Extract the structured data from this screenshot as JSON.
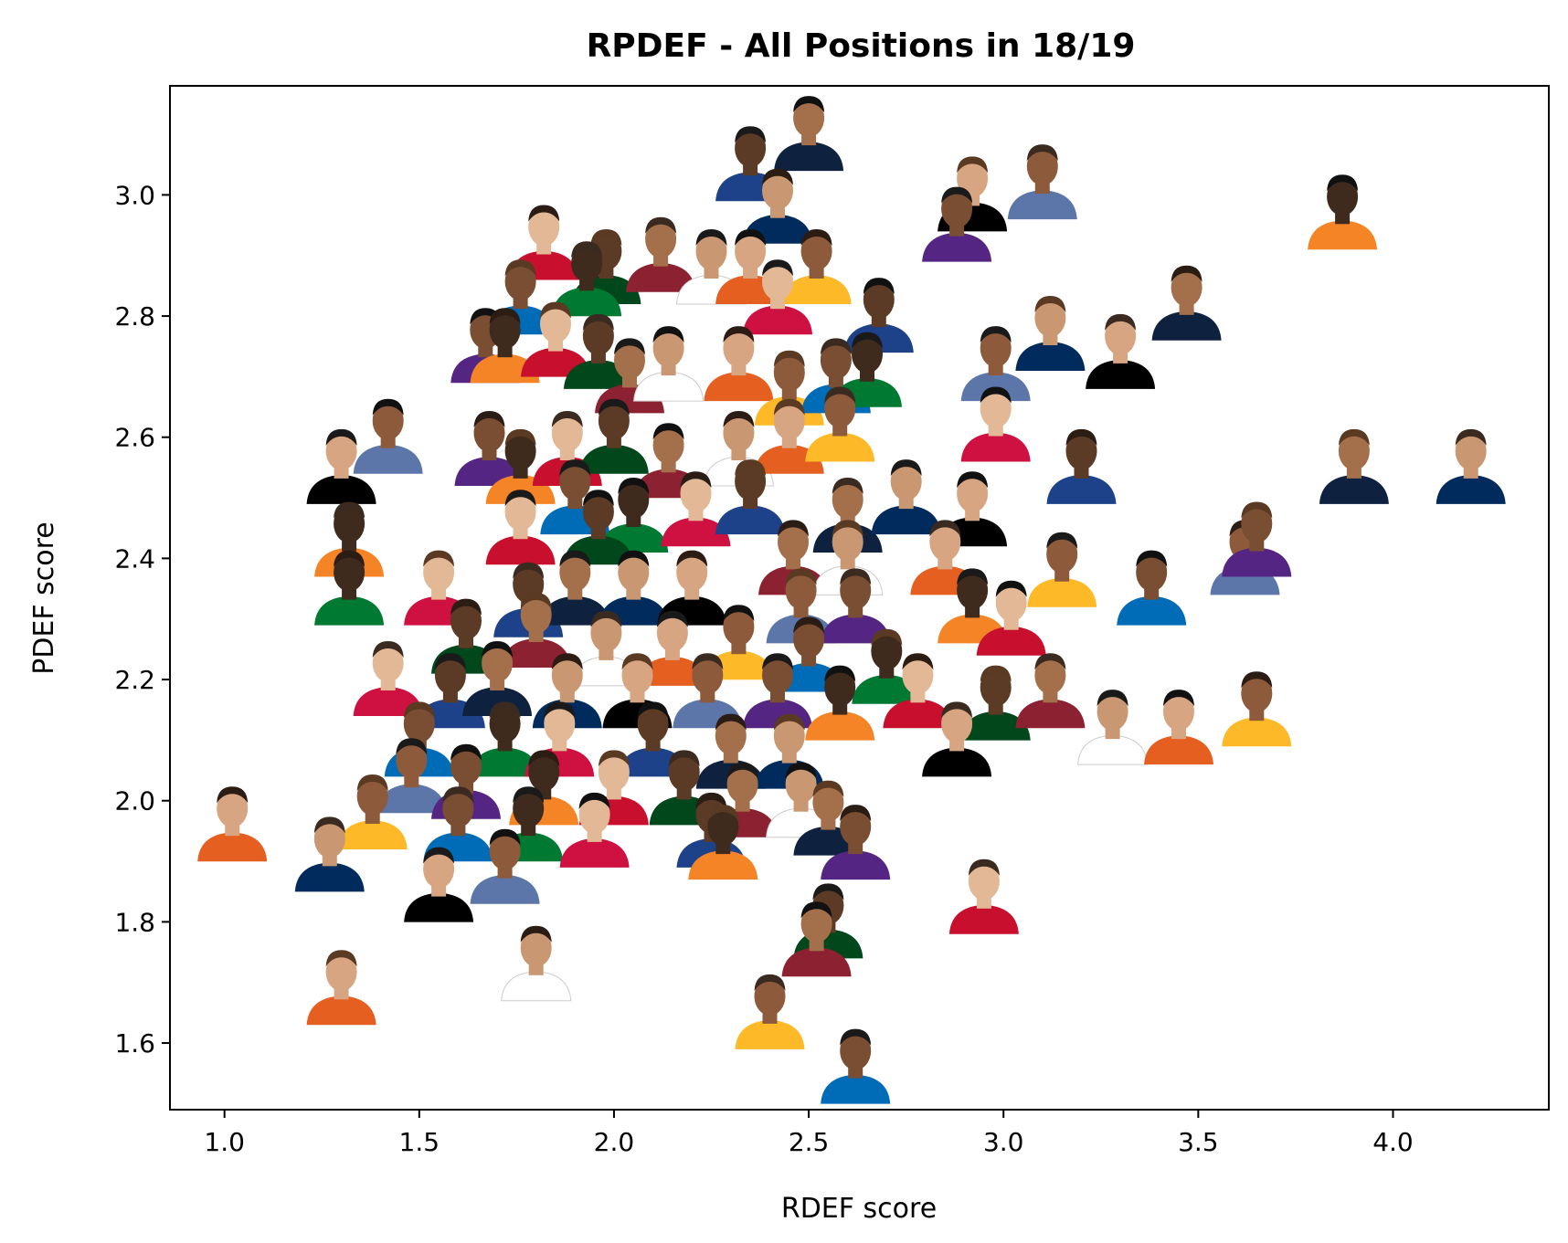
{
  "chart_data": {
    "type": "scatter",
    "title": "RPDEF - All Positions in 18/19",
    "xlabel": "RDEF score",
    "ylabel": "PDEF score",
    "xlim": [
      0.86,
      4.4
    ],
    "ylim": [
      1.49,
      3.18
    ],
    "xticks": [
      1.0,
      1.5,
      2.0,
      2.5,
      3.0,
      3.5,
      4.0
    ],
    "yticks": [
      1.6,
      1.8,
      2.0,
      2.2,
      2.4,
      2.6,
      2.8,
      3.0
    ],
    "xtick_labels": [
      "1.0",
      "1.5",
      "2.0",
      "2.5",
      "3.0",
      "3.5",
      "4.0"
    ],
    "ytick_labels": [
      "1.6",
      "1.8",
      "2.0",
      "2.2",
      "2.4",
      "2.6",
      "2.8",
      "3.0"
    ],
    "grid": false,
    "marker": "player-headshot",
    "points": [
      {
        "x": 2.35,
        "y": 3.05
      },
      {
        "x": 2.5,
        "y": 3.1
      },
      {
        "x": 2.42,
        "y": 2.98
      },
      {
        "x": 2.92,
        "y": 3.0
      },
      {
        "x": 3.1,
        "y": 3.02
      },
      {
        "x": 2.88,
        "y": 2.95
      },
      {
        "x": 3.87,
        "y": 2.97
      },
      {
        "x": 1.82,
        "y": 2.92
      },
      {
        "x": 1.98,
        "y": 2.88
      },
      {
        "x": 2.12,
        "y": 2.9
      },
      {
        "x": 2.25,
        "y": 2.88
      },
      {
        "x": 2.35,
        "y": 2.88
      },
      {
        "x": 2.52,
        "y": 2.88
      },
      {
        "x": 1.76,
        "y": 2.83
      },
      {
        "x": 1.93,
        "y": 2.86
      },
      {
        "x": 2.42,
        "y": 2.83
      },
      {
        "x": 2.68,
        "y": 2.8
      },
      {
        "x": 3.47,
        "y": 2.82
      },
      {
        "x": 3.12,
        "y": 2.77
      },
      {
        "x": 3.3,
        "y": 2.74
      },
      {
        "x": 2.98,
        "y": 2.72
      },
      {
        "x": 1.67,
        "y": 2.75
      },
      {
        "x": 1.72,
        "y": 2.75
      },
      {
        "x": 1.85,
        "y": 2.76
      },
      {
        "x": 1.96,
        "y": 2.74
      },
      {
        "x": 2.04,
        "y": 2.7
      },
      {
        "x": 2.14,
        "y": 2.72
      },
      {
        "x": 2.32,
        "y": 2.72
      },
      {
        "x": 2.45,
        "y": 2.68
      },
      {
        "x": 2.57,
        "y": 2.7
      },
      {
        "x": 2.65,
        "y": 2.71
      },
      {
        "x": 2.98,
        "y": 2.62
      },
      {
        "x": 3.2,
        "y": 2.55
      },
      {
        "x": 3.9,
        "y": 2.55
      },
      {
        "x": 4.2,
        "y": 2.55
      },
      {
        "x": 1.3,
        "y": 2.55
      },
      {
        "x": 1.42,
        "y": 2.6
      },
      {
        "x": 1.68,
        "y": 2.58
      },
      {
        "x": 1.76,
        "y": 2.55
      },
      {
        "x": 1.88,
        "y": 2.58
      },
      {
        "x": 2.0,
        "y": 2.6
      },
      {
        "x": 2.14,
        "y": 2.56
      },
      {
        "x": 2.32,
        "y": 2.58
      },
      {
        "x": 2.45,
        "y": 2.6
      },
      {
        "x": 2.58,
        "y": 2.62
      },
      {
        "x": 1.9,
        "y": 2.5
      },
      {
        "x": 2.05,
        "y": 2.47
      },
      {
        "x": 2.21,
        "y": 2.48
      },
      {
        "x": 2.35,
        "y": 2.5
      },
      {
        "x": 2.6,
        "y": 2.47
      },
      {
        "x": 2.75,
        "y": 2.5
      },
      {
        "x": 2.92,
        "y": 2.48
      },
      {
        "x": 3.62,
        "y": 2.4
      },
      {
        "x": 3.65,
        "y": 2.43
      },
      {
        "x": 1.32,
        "y": 2.43
      },
      {
        "x": 1.76,
        "y": 2.45
      },
      {
        "x": 1.96,
        "y": 2.45
      },
      {
        "x": 2.46,
        "y": 2.4
      },
      {
        "x": 2.6,
        "y": 2.4
      },
      {
        "x": 2.85,
        "y": 2.4
      },
      {
        "x": 3.15,
        "y": 2.38
      },
      {
        "x": 3.38,
        "y": 2.35
      },
      {
        "x": 1.32,
        "y": 2.35
      },
      {
        "x": 1.55,
        "y": 2.35
      },
      {
        "x": 1.78,
        "y": 2.33
      },
      {
        "x": 1.9,
        "y": 2.35
      },
      {
        "x": 2.05,
        "y": 2.35
      },
      {
        "x": 2.2,
        "y": 2.35
      },
      {
        "x": 2.48,
        "y": 2.32
      },
      {
        "x": 2.62,
        "y": 2.32
      },
      {
        "x": 2.92,
        "y": 2.32
      },
      {
        "x": 3.02,
        "y": 2.3
      },
      {
        "x": 1.62,
        "y": 2.27
      },
      {
        "x": 1.8,
        "y": 2.28
      },
      {
        "x": 1.98,
        "y": 2.25
      },
      {
        "x": 2.15,
        "y": 2.25
      },
      {
        "x": 2.32,
        "y": 2.26
      },
      {
        "x": 2.5,
        "y": 2.24
      },
      {
        "x": 2.7,
        "y": 2.22
      },
      {
        "x": 1.42,
        "y": 2.2
      },
      {
        "x": 1.58,
        "y": 2.18
      },
      {
        "x": 1.7,
        "y": 2.2
      },
      {
        "x": 1.88,
        "y": 2.18
      },
      {
        "x": 2.06,
        "y": 2.18
      },
      {
        "x": 2.24,
        "y": 2.18
      },
      {
        "x": 2.42,
        "y": 2.18
      },
      {
        "x": 2.58,
        "y": 2.16
      },
      {
        "x": 2.78,
        "y": 2.18
      },
      {
        "x": 2.98,
        "y": 2.16
      },
      {
        "x": 3.12,
        "y": 2.18
      },
      {
        "x": 3.28,
        "y": 2.12
      },
      {
        "x": 3.45,
        "y": 2.12
      },
      {
        "x": 3.65,
        "y": 2.15
      },
      {
        "x": 1.5,
        "y": 2.1
      },
      {
        "x": 1.72,
        "y": 2.1
      },
      {
        "x": 1.86,
        "y": 2.1
      },
      {
        "x": 2.1,
        "y": 2.1
      },
      {
        "x": 2.3,
        "y": 2.08
      },
      {
        "x": 2.45,
        "y": 2.08
      },
      {
        "x": 2.88,
        "y": 2.1
      },
      {
        "x": 1.48,
        "y": 2.04
      },
      {
        "x": 1.62,
        "y": 2.03
      },
      {
        "x": 1.82,
        "y": 2.02
      },
      {
        "x": 2.0,
        "y": 2.02
      },
      {
        "x": 2.18,
        "y": 2.02
      },
      {
        "x": 2.33,
        "y": 2.0
      },
      {
        "x": 2.48,
        "y": 2.0
      },
      {
        "x": 1.02,
        "y": 1.96
      },
      {
        "x": 1.38,
        "y": 1.98
      },
      {
        "x": 1.6,
        "y": 1.96
      },
      {
        "x": 1.78,
        "y": 1.96
      },
      {
        "x": 1.95,
        "y": 1.95
      },
      {
        "x": 2.25,
        "y": 1.95
      },
      {
        "x": 2.55,
        "y": 1.97
      },
      {
        "x": 1.27,
        "y": 1.91
      },
      {
        "x": 1.55,
        "y": 1.86
      },
      {
        "x": 1.72,
        "y": 1.89
      },
      {
        "x": 2.62,
        "y": 1.93
      },
      {
        "x": 2.28,
        "y": 1.93
      },
      {
        "x": 2.95,
        "y": 1.84
      },
      {
        "x": 2.55,
        "y": 1.8
      },
      {
        "x": 2.52,
        "y": 1.77
      },
      {
        "x": 1.8,
        "y": 1.73
      },
      {
        "x": 1.3,
        "y": 1.69
      },
      {
        "x": 2.4,
        "y": 1.65
      },
      {
        "x": 2.62,
        "y": 1.56
      }
    ]
  }
}
